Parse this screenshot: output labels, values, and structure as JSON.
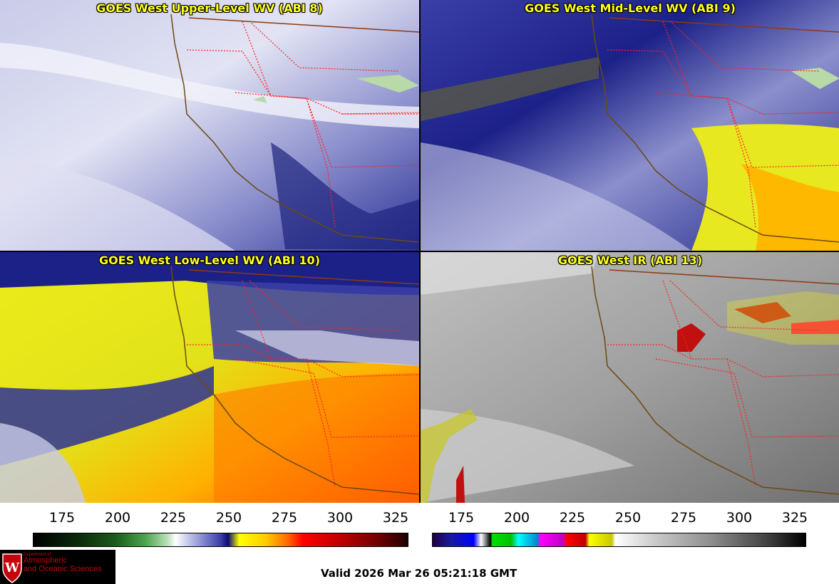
{
  "panels": [
    {
      "title": "GOES West Upper-Level WV (ABI 8)"
    },
    {
      "title": "GOES West Mid-Level WV (ABI 9)"
    },
    {
      "title": "GOES West Low-Level WV (ABI 10)"
    },
    {
      "title": "GOES West IR (ABI 13)"
    }
  ],
  "colorbars": {
    "left_ticks": [
      "175",
      "200",
      "225",
      "250",
      "275",
      "300",
      "325"
    ],
    "right_ticks": [
      "175",
      "200",
      "225",
      "250",
      "275",
      "300",
      "325"
    ]
  },
  "logo": {
    "line1": "Department of",
    "line2": "Atmospheric",
    "line3": "and Oceanic Sciences",
    "emblem": "W"
  },
  "footer": {
    "valid_time": "Valid 2026 Mar 26 05:21:18 GMT"
  },
  "colors": {
    "title": "#ffff22",
    "state_borders": "#ff2020",
    "coastline": "#6b4a10",
    "logo_red": "#c5050c"
  }
}
